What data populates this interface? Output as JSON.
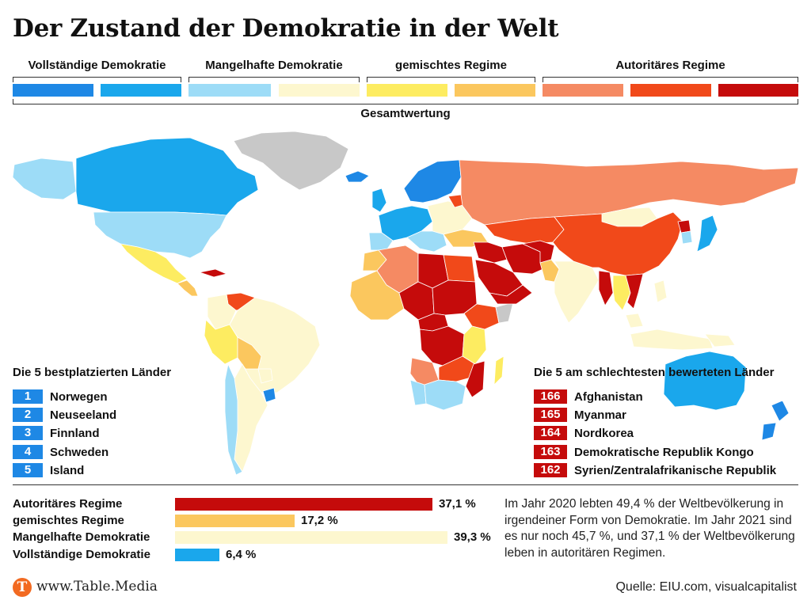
{
  "header": {
    "title": "Der Zustand der Demokratie in der Welt"
  },
  "legend": {
    "categories": [
      {
        "label": "Vollständige Demokratie",
        "colors": [
          "#1e88e5",
          "#1aa7ec"
        ]
      },
      {
        "label": "Mangelhafte Demokratie",
        "colors": [
          "#9ddcf7",
          "#fdf7cf"
        ]
      },
      {
        "label": "gemischtes Regime",
        "colors": [
          "#fdec61",
          "#fbc75e"
        ]
      },
      {
        "label": "Autoritäres Regime",
        "colors": [
          "#f58a63",
          "#f1491a",
          "#c50b0b"
        ]
      }
    ],
    "overall_label": "Gesamtwertung"
  },
  "best": {
    "title": "Die 5 bestplatzierten Länder",
    "color": "#1e88e5",
    "items": [
      {
        "rank": "1",
        "name": "Norwegen"
      },
      {
        "rank": "2",
        "name": "Neuseeland"
      },
      {
        "rank": "3",
        "name": "Finnland"
      },
      {
        "rank": "4",
        "name": "Schweden"
      },
      {
        "rank": "5",
        "name": "Island"
      }
    ]
  },
  "worst": {
    "title": "Die 5 am schlechtesten bewerteten Länder",
    "color": "#c50b0b",
    "items": [
      {
        "rank": "166",
        "name": "Afghanistan"
      },
      {
        "rank": "165",
        "name": "Myanmar"
      },
      {
        "rank": "164",
        "name": "Nordkorea"
      },
      {
        "rank": "163",
        "name": "Demokratische Republik Kongo"
      },
      {
        "rank": "162",
        "name": "Syrien/Zentralafrikanische Republik"
      }
    ]
  },
  "chart_data": {
    "type": "bar",
    "orientation": "horizontal",
    "categories": [
      "Autoritäres Regime",
      "gemischtes Regime",
      "Mangelhafte Demokratie",
      "Vollständige Demokratie"
    ],
    "values": [
      37.1,
      17.2,
      39.3,
      6.4
    ],
    "value_labels": [
      "37,1 %",
      "17,2 %",
      "39,3 %",
      "6,4 %"
    ],
    "colors": [
      "#c50b0b",
      "#fbc75e",
      "#fdf7cf",
      "#1aa7ec"
    ],
    "xlim": [
      0,
      39.3
    ]
  },
  "note": "Im Jahr 2020 lebten 49,4 % der Weltbevölkerung in irgendeiner Form von Demokratie. Im Jahr 2021 sind es nur noch 45,7 %, und 37,1 % der Weltbevölkerung leben in autoritären Regimen.",
  "footer": {
    "logo": "T",
    "site": "www.Table.Media",
    "source": "Quelle: EIU.com, visualcapitalist"
  }
}
